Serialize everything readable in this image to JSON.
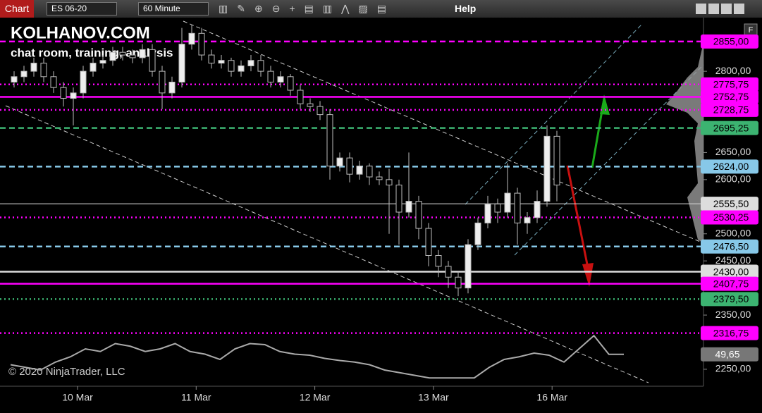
{
  "toolbar": {
    "tab": "Chart",
    "instrument": "ES 06-20",
    "interval": "60 Minute",
    "help": "Help",
    "panel_button": "F"
  },
  "watermark": {
    "brand": "KOLHANOV.COM",
    "tagline": "chat room, training, analysis",
    "copyright": "© 2020 NinjaTrader, LLC"
  },
  "chart": {
    "type": "candlestick",
    "ylim": [
      2220,
      2886
    ],
    "yticks": [
      {
        "value": 2800,
        "label": "2800,00"
      },
      {
        "value": 2650,
        "label": "2650,00"
      },
      {
        "value": 2600,
        "label": "2600,00"
      },
      {
        "value": 2500,
        "label": "2500,00"
      },
      {
        "value": 2450,
        "label": "2450,00"
      },
      {
        "value": 2350,
        "label": "2350,00"
      },
      {
        "value": 2250,
        "label": "2250,00"
      }
    ],
    "dates": [
      "10 Mar",
      "11 Mar",
      "12 Mar",
      "13 Mar",
      "16 Mar"
    ],
    "levels": [
      {
        "value": 2855,
        "label": "2855,00",
        "color": "#ff00ff",
        "style": "dashed"
      },
      {
        "value": 2775.75,
        "label": "2775,75",
        "color": "#ff00ff",
        "style": "dotted"
      },
      {
        "value": 2752.75,
        "label": "2752,75",
        "color": "#ff00ff",
        "style": "solid"
      },
      {
        "value": 2728.75,
        "label": "2728,75",
        "color": "#ff00ff",
        "style": "dotted"
      },
      {
        "value": 2695.25,
        "label": "2695,25",
        "color": "#3cb371",
        "style": "dashed"
      },
      {
        "value": 2624,
        "label": "2624,00",
        "color": "#87c8e8",
        "style": "dashed"
      },
      {
        "value": 2555.5,
        "label": "2555,50",
        "color": "#dddddd",
        "style": "thin"
      },
      {
        "value": 2530.25,
        "label": "2530,25",
        "color": "#ff00ff",
        "style": "dotted"
      },
      {
        "value": 2476.5,
        "label": "2476,50",
        "color": "#87c8e8",
        "style": "dashed"
      },
      {
        "value": 2430,
        "label": "2430,00",
        "color": "#dddddd",
        "style": "solid"
      },
      {
        "value": 2407.75,
        "label": "2407,75",
        "color": "#ff00ff",
        "style": "solid"
      },
      {
        "value": 2379.5,
        "label": "2379,50",
        "color": "#3cb371",
        "style": "dotted"
      },
      {
        "value": 2316.75,
        "label": "2316,75",
        "color": "#ff00ff",
        "style": "dotted"
      }
    ],
    "candles": [
      [
        2780,
        2800,
        2770,
        2790
      ],
      [
        2790,
        2810,
        2780,
        2800
      ],
      [
        2800,
        2825,
        2790,
        2815
      ],
      [
        2815,
        2825,
        2780,
        2790
      ],
      [
        2790,
        2800,
        2760,
        2770
      ],
      [
        2770,
        2780,
        2735,
        2750
      ],
      [
        2750,
        2770,
        2700,
        2760
      ],
      [
        2760,
        2810,
        2750,
        2800
      ],
      [
        2800,
        2825,
        2790,
        2815
      ],
      [
        2815,
        2830,
        2805,
        2820
      ],
      [
        2820,
        2845,
        2810,
        2835
      ],
      [
        2835,
        2845,
        2820,
        2830
      ],
      [
        2830,
        2840,
        2815,
        2825
      ],
      [
        2825,
        2850,
        2815,
        2840
      ],
      [
        2840,
        2850,
        2790,
        2800
      ],
      [
        2800,
        2810,
        2730,
        2760
      ],
      [
        2760,
        2790,
        2750,
        2780
      ],
      [
        2780,
        2880,
        2770,
        2850
      ],
      [
        2850,
        2885,
        2840,
        2870
      ],
      [
        2870,
        2880,
        2820,
        2830
      ],
      [
        2830,
        2840,
        2805,
        2815
      ],
      [
        2815,
        2830,
        2805,
        2820
      ],
      [
        2820,
        2825,
        2790,
        2800
      ],
      [
        2800,
        2820,
        2790,
        2810
      ],
      [
        2810,
        2830,
        2800,
        2820
      ],
      [
        2820,
        2830,
        2790,
        2800
      ],
      [
        2800,
        2810,
        2770,
        2780
      ],
      [
        2780,
        2800,
        2770,
        2790
      ],
      [
        2790,
        2795,
        2755,
        2765
      ],
      [
        2765,
        2775,
        2730,
        2740
      ],
      [
        2740,
        2750,
        2725,
        2735
      ],
      [
        2735,
        2745,
        2710,
        2720
      ],
      [
        2720,
        2730,
        2600,
        2625
      ],
      [
        2625,
        2650,
        2615,
        2640
      ],
      [
        2640,
        2650,
        2595,
        2610
      ],
      [
        2610,
        2635,
        2600,
        2625
      ],
      [
        2625,
        2630,
        2590,
        2605
      ],
      [
        2605,
        2615,
        2590,
        2600
      ],
      [
        2600,
        2620,
        2500,
        2590
      ],
      [
        2590,
        2600,
        2480,
        2540
      ],
      [
        2540,
        2650,
        2530,
        2560
      ],
      [
        2560,
        2570,
        2490,
        2510
      ],
      [
        2510,
        2520,
        2440,
        2460
      ],
      [
        2460,
        2470,
        2420,
        2440
      ],
      [
        2440,
        2450,
        2400,
        2420
      ],
      [
        2420,
        2430,
        2385,
        2400
      ],
      [
        2400,
        2490,
        2390,
        2480
      ],
      [
        2480,
        2530,
        2470,
        2520
      ],
      [
        2520,
        2570,
        2510,
        2555
      ],
      [
        2555,
        2565,
        2520,
        2540
      ],
      [
        2540,
        2630,
        2530,
        2575
      ],
      [
        2575,
        2585,
        2480,
        2520
      ],
      [
        2520,
        2540,
        2500,
        2530
      ],
      [
        2530,
        2580,
        2520,
        2560
      ],
      [
        2560,
        2700,
        2550,
        2680
      ],
      [
        2680,
        2690,
        2560,
        2590
      ]
    ],
    "indicator": {
      "values": [
        30,
        25,
        20,
        35,
        45,
        60,
        55,
        70,
        65,
        55,
        60,
        70,
        55,
        50,
        40,
        60,
        70,
        68,
        55,
        50,
        48,
        42,
        38,
        35,
        30,
        20,
        15,
        10,
        5,
        5,
        5,
        5,
        25,
        40,
        45,
        52,
        48,
        35,
        60,
        85,
        49.65,
        49.65
      ],
      "label": "49,65"
    }
  }
}
